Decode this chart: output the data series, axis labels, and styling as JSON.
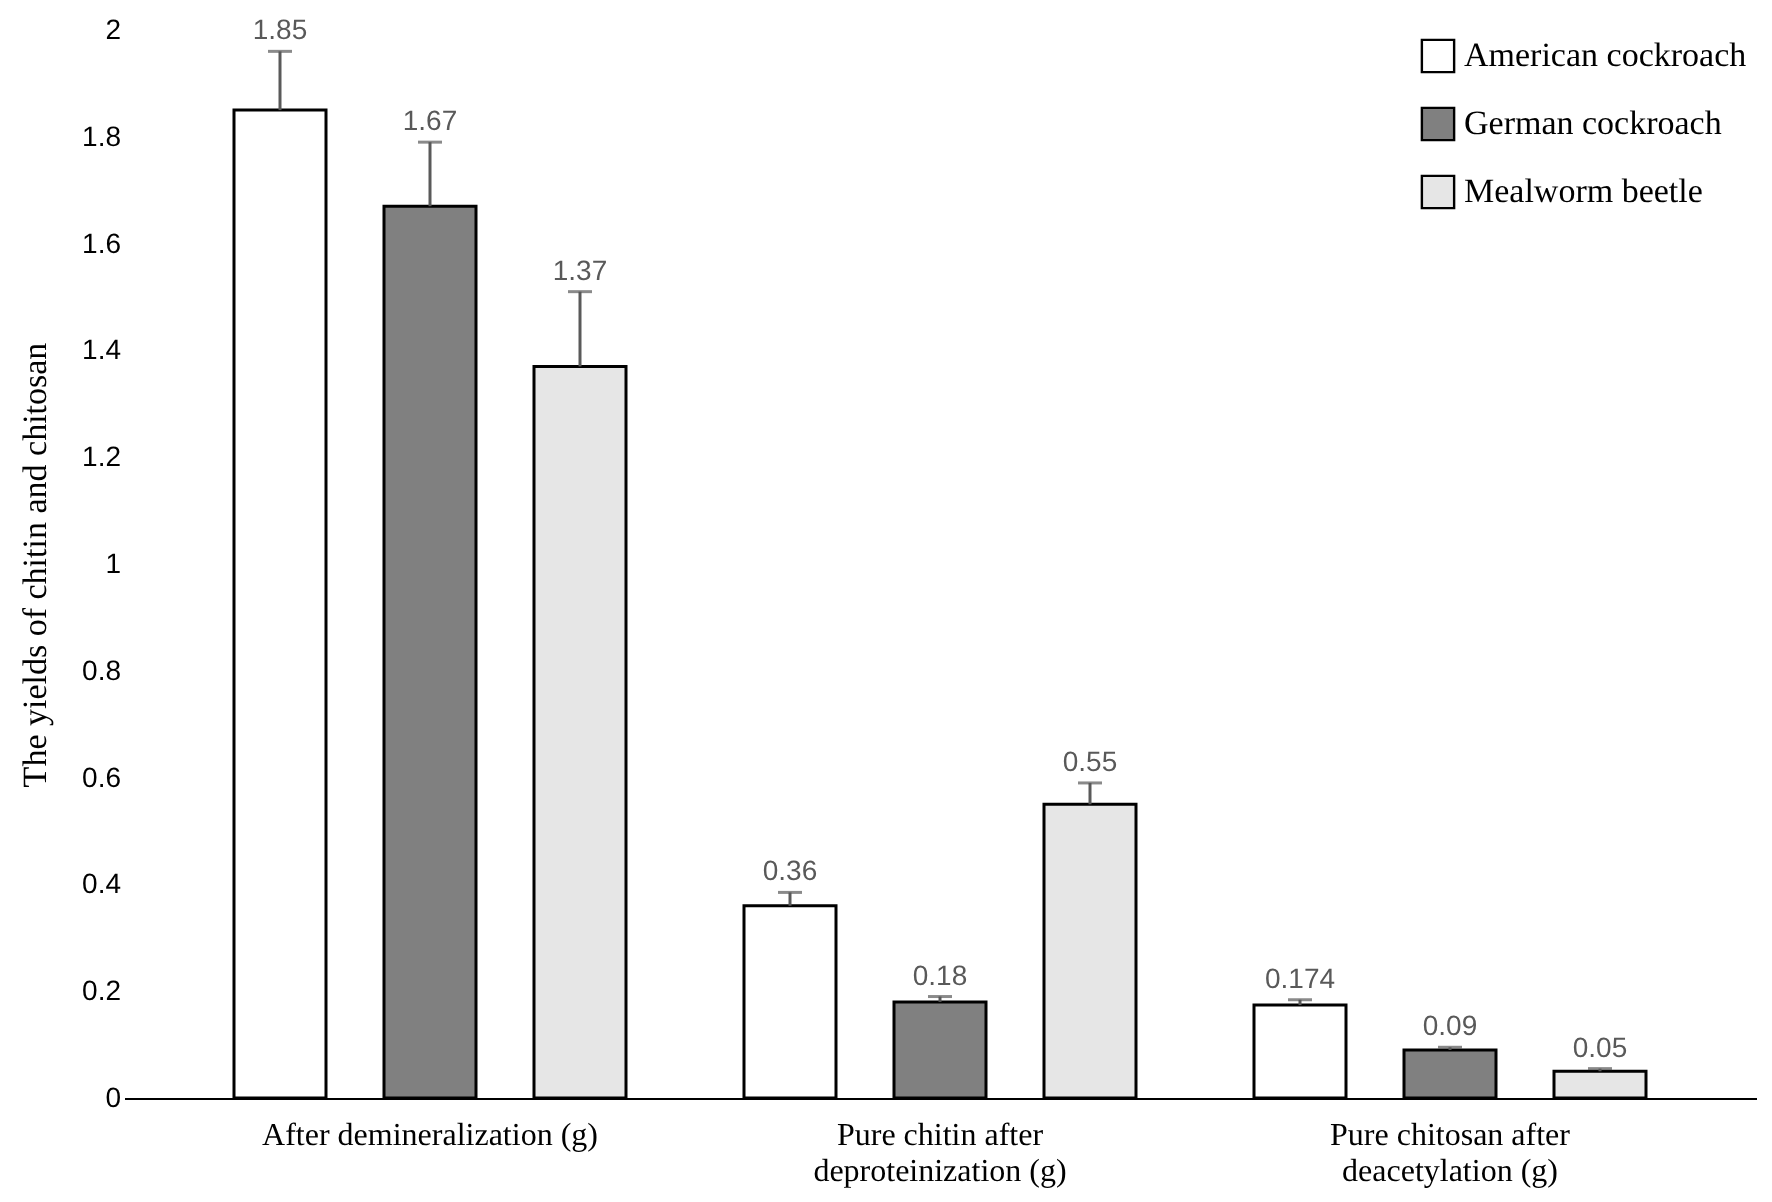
{
  "chart_data": {
    "type": "bar",
    "ylabel": "The yields  of chitin  and chitosan",
    "categories": [
      "After demineralization (g)",
      "Pure chitin after\ndeproteinization (g)",
      "Pure chitosan after\ndeacetylation (g)"
    ],
    "series": [
      {
        "name": "American cockroach",
        "color": "#ffffff",
        "values": [
          1.85,
          0.36,
          0.174
        ],
        "errors": [
          [
            1.85,
            1.96
          ],
          [
            0.36,
            0.385
          ],
          [
            0.174,
            0.184
          ]
        ]
      },
      {
        "name": "German cockroach",
        "color": "#808080",
        "values": [
          1.67,
          0.18,
          0.09
        ],
        "errors": [
          [
            1.67,
            1.79
          ],
          [
            0.18,
            0.19
          ],
          [
            0.09,
            0.095
          ]
        ]
      },
      {
        "name": "Mealworm beetle",
        "color": "#e6e6e6",
        "values": [
          1.37,
          0.55,
          0.05
        ],
        "errors": [
          [
            1.37,
            1.51
          ],
          [
            0.55,
            0.59
          ],
          [
            0.05,
            0.055
          ]
        ]
      }
    ],
    "ylim": [
      0,
      2
    ],
    "yticks": [
      0,
      0.2,
      0.4,
      0.6,
      0.8,
      1,
      1.2,
      1.4,
      1.6,
      1.8,
      2
    ],
    "data_labels": true,
    "grid": false,
    "legend": "top right"
  }
}
